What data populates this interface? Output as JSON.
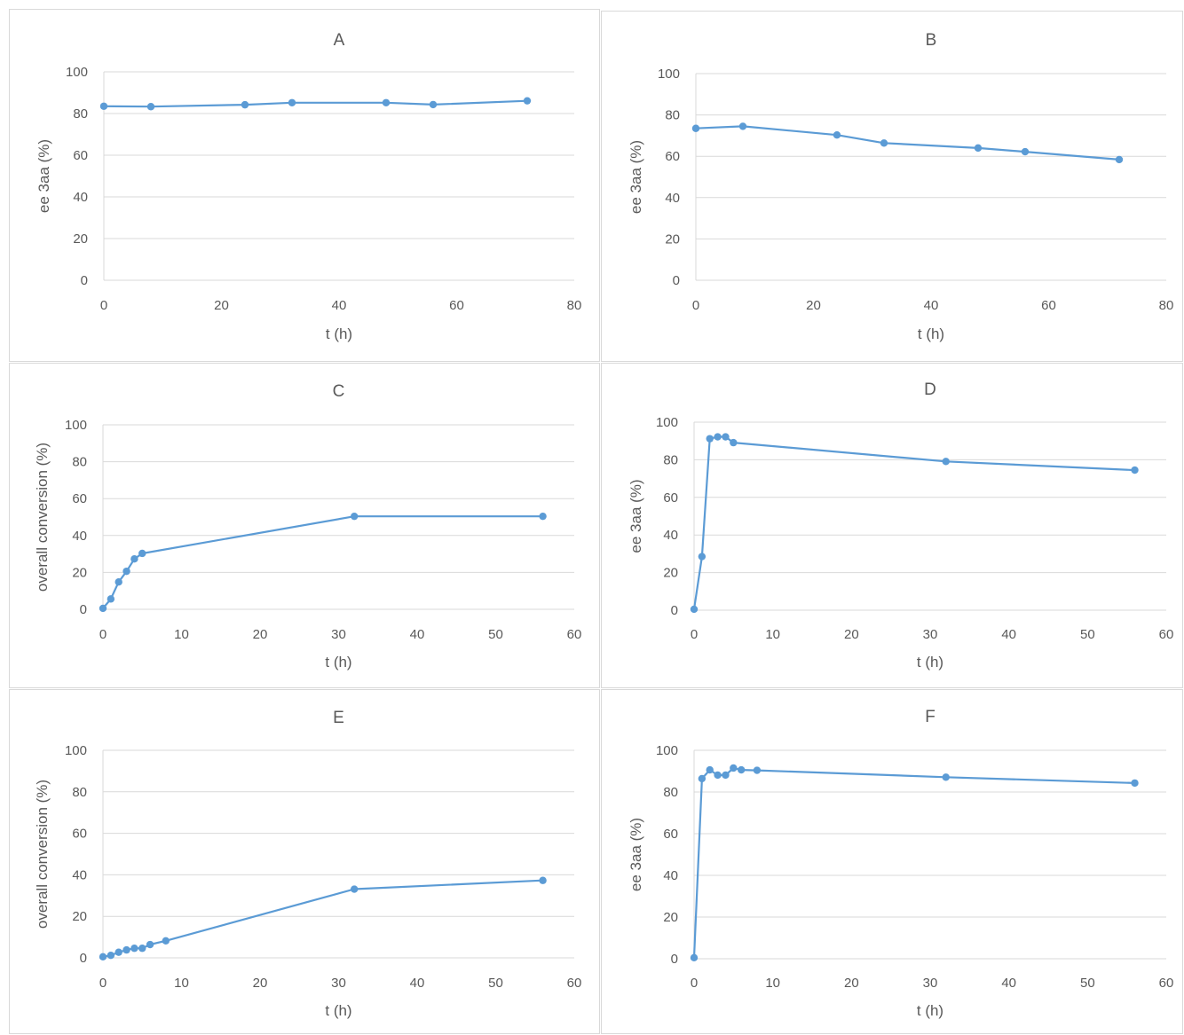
{
  "colors": {
    "series": "#5B9BD5",
    "grid": "#d9d9d9",
    "text": "#595959"
  },
  "chart_data": [
    {
      "type": "line",
      "title": "A",
      "xlabel": "t (h)",
      "ylabel": "ee 3aa (%)",
      "xlim": [
        0,
        80
      ],
      "xticks": [
        0,
        20,
        40,
        60,
        80
      ],
      "ylim": [
        0,
        100
      ],
      "yticks": [
        0,
        20,
        40,
        60,
        80,
        100
      ],
      "grid": "horizontal",
      "series": [
        {
          "x": [
            0,
            8,
            24,
            32,
            48,
            56,
            72
          ],
          "y": [
            83.5,
            83.3,
            84.2,
            85.2,
            85.2,
            84.3,
            86.1
          ]
        }
      ]
    },
    {
      "type": "line",
      "title": "B",
      "xlabel": "t (h)",
      "ylabel": "ee 3aa (%)",
      "xlim": [
        0,
        80
      ],
      "xticks": [
        0,
        20,
        40,
        60,
        80
      ],
      "ylim": [
        0,
        100
      ],
      "yticks": [
        0,
        20,
        40,
        60,
        80,
        100
      ],
      "grid": "horizontal",
      "series": [
        {
          "x": [
            0,
            8,
            24,
            32,
            48,
            56,
            72
          ],
          "y": [
            73.5,
            74.5,
            70.3,
            66.4,
            64.0,
            62.2,
            58.4
          ]
        }
      ]
    },
    {
      "type": "line",
      "title": "C",
      "xlabel": "t (h)",
      "ylabel": "overall conversion (%)",
      "xlim": [
        0,
        60
      ],
      "xticks": [
        0,
        10,
        20,
        30,
        40,
        50,
        60
      ],
      "ylim": [
        0,
        100
      ],
      "yticks": [
        0,
        20,
        40,
        60,
        80,
        100
      ],
      "grid": "horizontal",
      "series": [
        {
          "x": [
            0,
            1,
            2,
            3,
            4,
            5,
            32,
            56
          ],
          "y": [
            0.5,
            5.6,
            14.8,
            20.6,
            27.3,
            30.3,
            50.4,
            50.4
          ]
        }
      ]
    },
    {
      "type": "line",
      "title": "D",
      "xlabel": "t (h)",
      "ylabel": "ee 3aa (%)",
      "xlim": [
        0,
        60
      ],
      "xticks": [
        0,
        10,
        20,
        30,
        40,
        50,
        60
      ],
      "ylim": [
        0,
        100
      ],
      "yticks": [
        0,
        20,
        40,
        60,
        80,
        100
      ],
      "grid": "horizontal",
      "series": [
        {
          "x": [
            0,
            1,
            2,
            3,
            4,
            5,
            32,
            56
          ],
          "y": [
            0.5,
            28.5,
            91.2,
            92.2,
            92.2,
            89.1,
            79.1,
            74.5
          ]
        }
      ]
    },
    {
      "type": "line",
      "title": "E",
      "xlabel": "t (h)",
      "ylabel": "overall conversion (%)",
      "xlim": [
        0,
        60
      ],
      "xticks": [
        0,
        10,
        20,
        30,
        40,
        50,
        60
      ],
      "ylim": [
        0,
        100
      ],
      "yticks": [
        0,
        20,
        40,
        60,
        80,
        100
      ],
      "grid": "horizontal",
      "series": [
        {
          "x": [
            0,
            1,
            2,
            3,
            4,
            5,
            6,
            8,
            32,
            56
          ],
          "y": [
            0.5,
            1.2,
            2.7,
            3.8,
            4.6,
            4.6,
            6.4,
            8.2,
            33.1,
            37.3
          ]
        }
      ]
    },
    {
      "type": "line",
      "title": "F",
      "xlabel": "t (h)",
      "ylabel": "ee 3aa (%)",
      "xlim": [
        0,
        60
      ],
      "xticks": [
        0,
        10,
        20,
        30,
        40,
        50,
        60
      ],
      "ylim": [
        0,
        100
      ],
      "yticks": [
        0,
        20,
        40,
        60,
        80,
        100
      ],
      "grid": "horizontal",
      "series": [
        {
          "x": [
            0,
            1,
            2,
            3,
            4,
            5,
            6,
            8,
            32,
            56
          ],
          "y": [
            0.5,
            86.4,
            90.6,
            88.1,
            88.1,
            91.5,
            90.6,
            90.4,
            87.1,
            84.3
          ]
        }
      ]
    }
  ]
}
